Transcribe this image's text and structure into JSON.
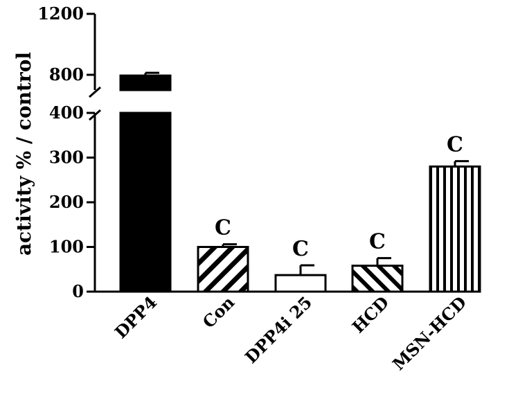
{
  "chart_data": {
    "type": "bar",
    "ylabel": "activity % / control",
    "y_axis_break": {
      "lower_segment": [
        0,
        400
      ],
      "upper_segment": [
        700,
        1200
      ]
    },
    "y_ticks": [
      "0",
      "100",
      "200",
      "300",
      "400",
      "800",
      "1200"
    ],
    "categories": [
      "DPP4",
      "Con",
      "DPP4i 25",
      "HCD",
      "MSN-HCD"
    ],
    "values": [
      795,
      100,
      37,
      58,
      280
    ],
    "errors": [
      18,
      6,
      22,
      17,
      12
    ],
    "fills": [
      "solid",
      "diagonal-down",
      "empty",
      "diagonal-up",
      "vertical-stripes"
    ],
    "significance": [
      "",
      "C",
      "C",
      "C",
      "C"
    ],
    "colors": {
      "bar": "#000000",
      "background": "#ffffff"
    },
    "grid": false,
    "legend": "none"
  }
}
